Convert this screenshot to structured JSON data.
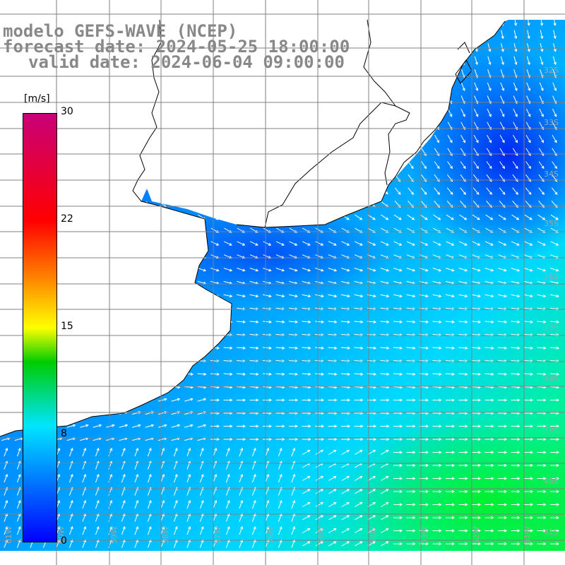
{
  "title": {
    "line1": "modelo GEFS-WAVE (NCEP)",
    "line2": "forecast date: 2024-05-25 18:00:00",
    "line3": "valid date: 2024-06-04 09:00:00"
  },
  "colorbar": {
    "unit": "[m/s]",
    "ticks": [
      "30",
      "22",
      "15",
      "8",
      "0"
    ],
    "tick_values": [
      30,
      22,
      15,
      8,
      0
    ],
    "range": [
      0,
      30
    ],
    "colors": [
      "#0000ff",
      "#00e5ff",
      "#00cc00",
      "#ffff00",
      "#ff8000",
      "#ff0000",
      "#c80078"
    ]
  },
  "map": {
    "variable": "wind speed and direction",
    "lat_labels": [
      "32S",
      "33S",
      "34S",
      "35S",
      "36S",
      "37S",
      "38S",
      "39S",
      "40S",
      "41S"
    ],
    "lon_labels": [
      "61W",
      "60W",
      "59W",
      "58W",
      "57W",
      "56W",
      "55W",
      "54W",
      "53W",
      "52W",
      "51W"
    ],
    "land_color": "#ffffff",
    "arrow_color": "#ffffff",
    "grid_color": "#808080"
  }
}
